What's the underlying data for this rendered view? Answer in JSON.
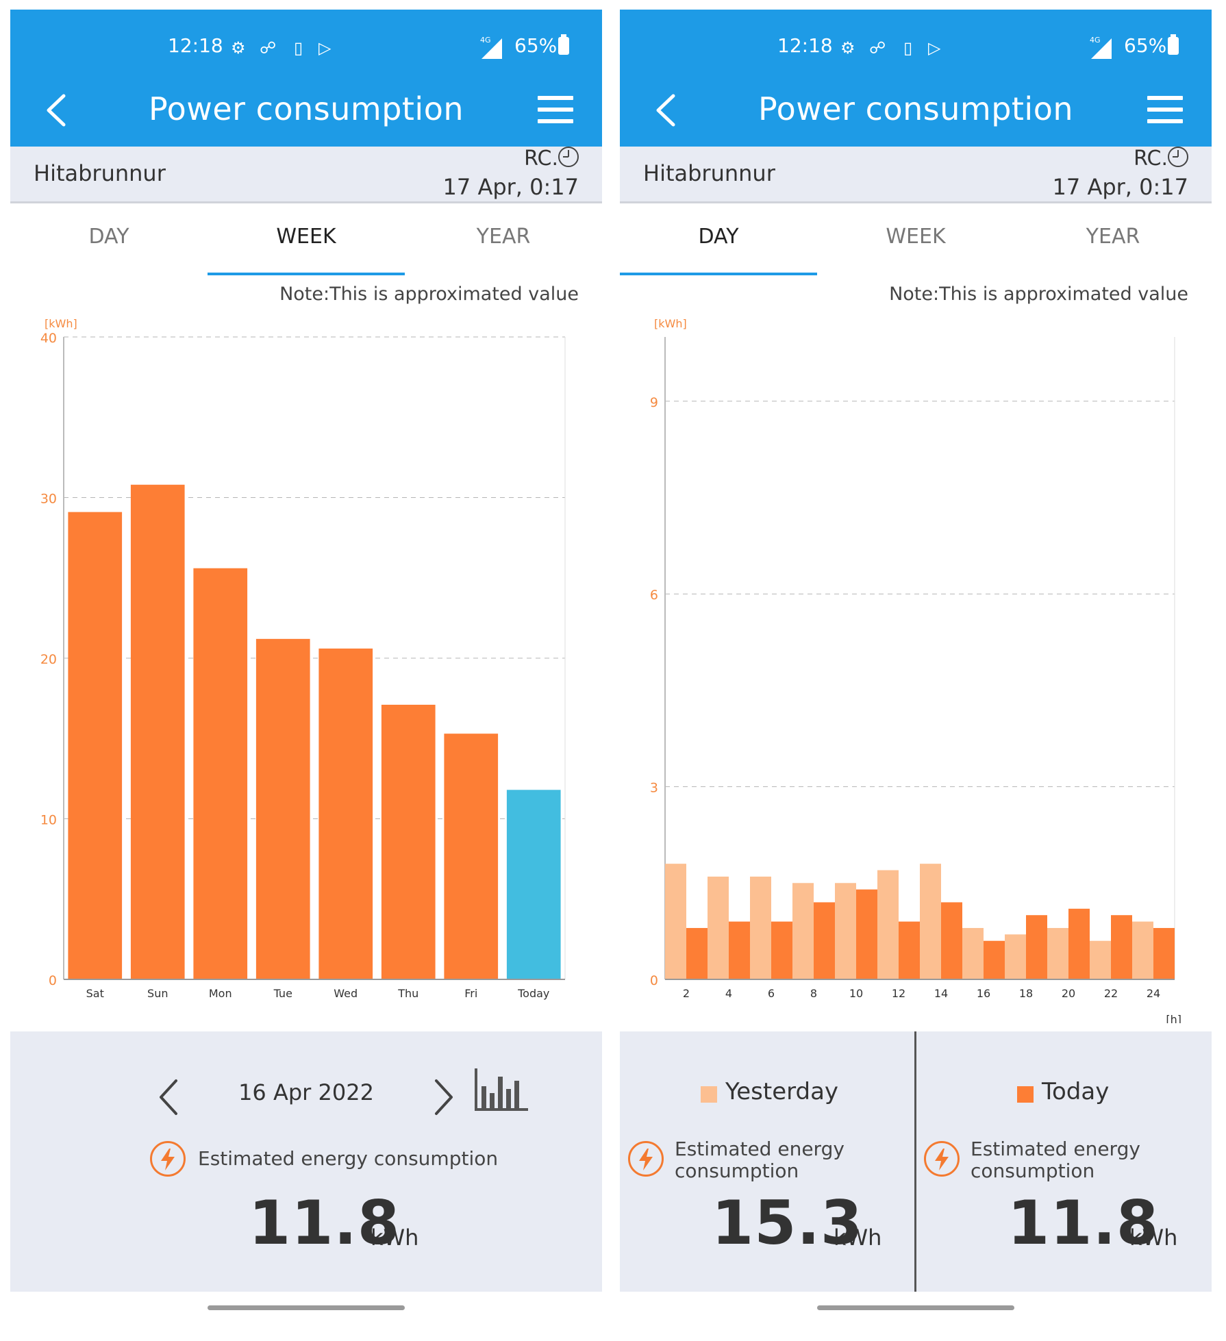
{
  "status_bar": {
    "time": "12:18",
    "network": "4G",
    "battery": "65%"
  },
  "app_bar": {
    "title": "Power consumption"
  },
  "info": {
    "device_name": "Hitabrunnur",
    "rc_label": "RC.",
    "timestamp": "17 Apr, 0:17"
  },
  "tabs": [
    "DAY",
    "WEEK",
    "YEAR"
  ],
  "note": "Note:This is approximated value",
  "colors": {
    "primary": "#1e9be6",
    "orange": "#fd7e35",
    "light_orange": "#fcbf91",
    "today_blue": "#42bde0",
    "axis_text": "#f58a40",
    "panel_bg": "#e8ebf3"
  },
  "week_screen": {
    "active_tab": "WEEK",
    "nav_date": "16 Apr 2022",
    "est_label": "Estimated energy consumption",
    "value": "11.8",
    "unit": "kWh"
  },
  "day_screen": {
    "active_tab": "DAY",
    "yesterday": {
      "legend": "Yesterday",
      "est_label_line1": "Estimated energy",
      "est_label_line2": "consumption",
      "value": "15.3",
      "unit": "kWh"
    },
    "today": {
      "legend": "Today",
      "est_label_line1": "Estimated energy",
      "est_label_line2": "consumption",
      "value": "11.8",
      "unit": "kWh"
    }
  },
  "chart_data": [
    {
      "type": "bar",
      "ylabel": "[kWh]",
      "ylim": [
        0,
        40
      ],
      "yticks": [
        0,
        10,
        20,
        30,
        40
      ],
      "grid": true,
      "categories": [
        "Sat",
        "Sun",
        "Mon",
        "Tue",
        "Wed",
        "Thu",
        "Fri",
        "Today"
      ],
      "values": [
        29.1,
        30.8,
        25.6,
        21.2,
        20.6,
        17.1,
        15.3,
        11.8
      ],
      "highlight_last": true
    },
    {
      "type": "bar",
      "ylabel": "[kWh]",
      "xlabel": "[h]",
      "ylim": [
        0,
        10
      ],
      "yticks": [
        0,
        3,
        6,
        9
      ],
      "grid": true,
      "xticks": [
        "2",
        "4",
        "6",
        "8",
        "10",
        "12",
        "14",
        "16",
        "18",
        "20",
        "22",
        "24"
      ],
      "series": [
        {
          "name": "Yesterday",
          "values": [
            1.8,
            1.6,
            1.6,
            1.5,
            1.5,
            1.7,
            1.8,
            0.8,
            0.7,
            0.8,
            0.6,
            0.9
          ]
        },
        {
          "name": "Today",
          "values": [
            0.8,
            0.9,
            0.9,
            1.2,
            1.4,
            0.9,
            1.2,
            0.6,
            1.0,
            1.1,
            1.0,
            0.8
          ]
        }
      ]
    }
  ]
}
